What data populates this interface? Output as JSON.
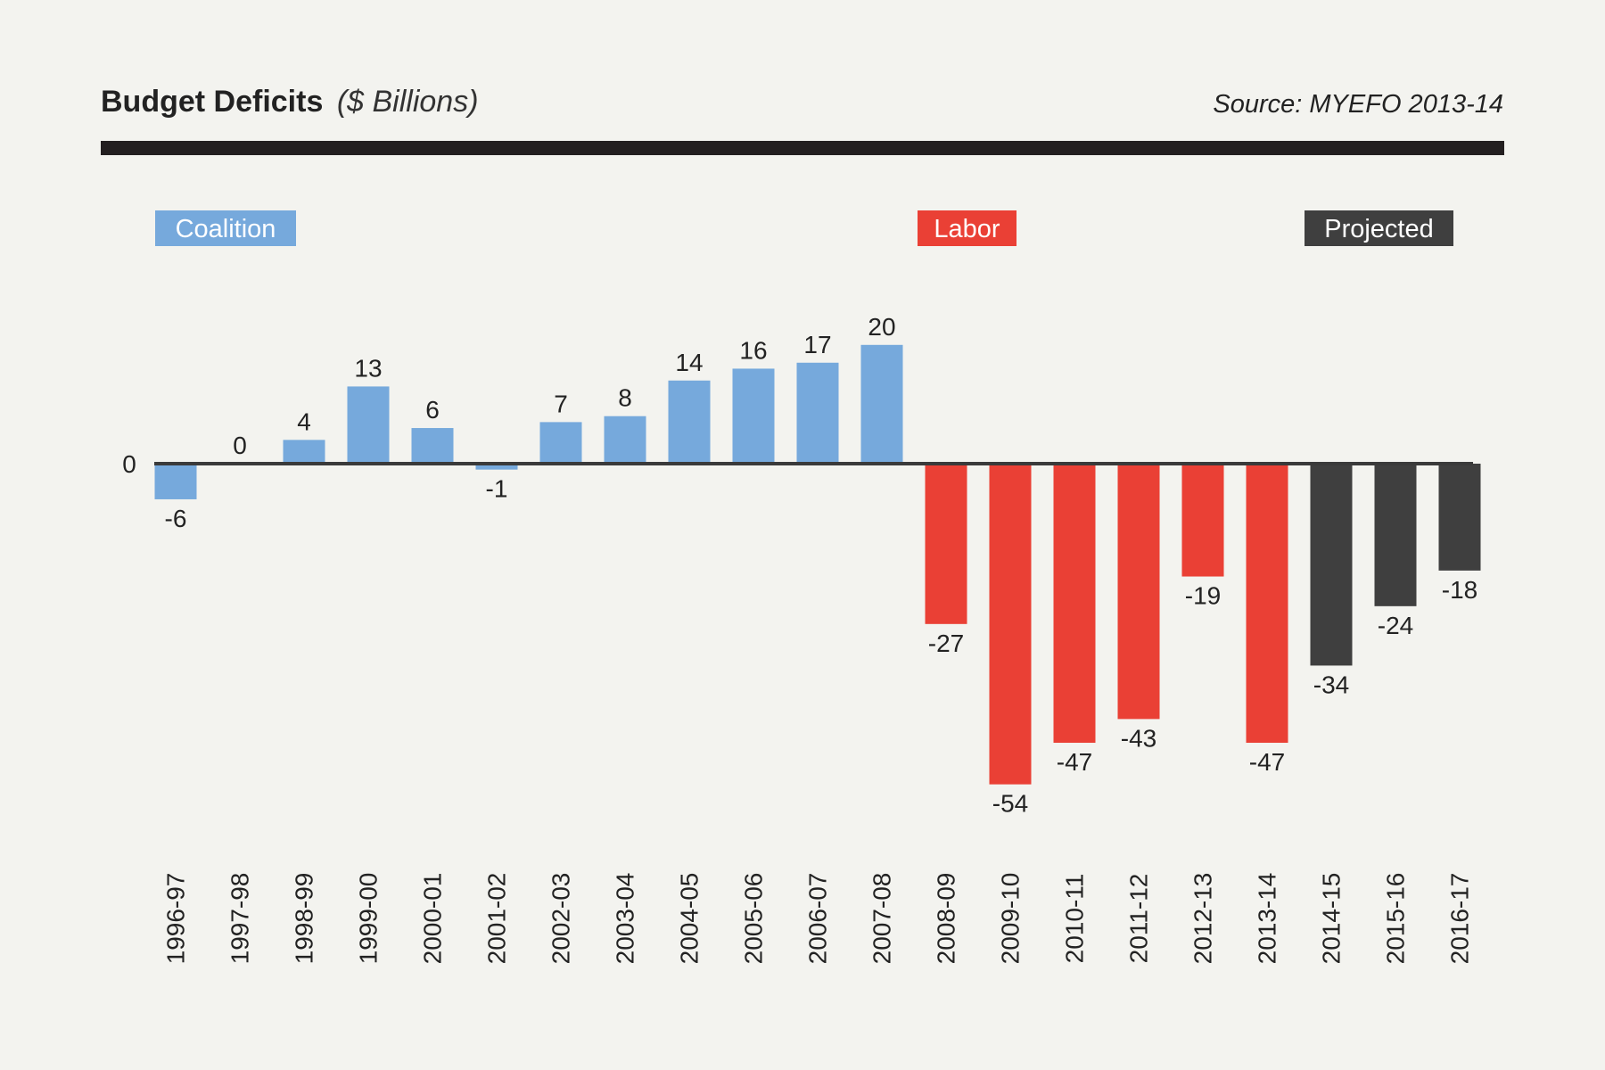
{
  "header": {
    "title": "Budget Deficits",
    "subtitle": "($ Billions)",
    "source": "Source: MYEFO 2013-14"
  },
  "colors": {
    "coalition": "#76a9dc",
    "labor": "#ea4035",
    "projected": "#3f3f3f",
    "legend_text": "#ffffff",
    "baseline": "#3a3a3a",
    "text": "#222222",
    "background": "#f3f3ef"
  },
  "chart_data": {
    "type": "bar",
    "title": "Budget Deficits",
    "subtitle": "($ Billions)",
    "source": "Source: MYEFO 2013-14",
    "zero_label": "0",
    "ylim": [
      -54,
      20
    ],
    "grid": false,
    "legend_position": "top",
    "legend": [
      {
        "label": "Coalition",
        "group": "coalition"
      },
      {
        "label": "Labor",
        "group": "labor"
      },
      {
        "label": "Projected",
        "group": "projected"
      }
    ],
    "categories": [
      "1996-97",
      "1997-98",
      "1998-99",
      "1999-00",
      "2000-01",
      "2001-02",
      "2002-03",
      "2003-04",
      "2004-05",
      "2005-06",
      "2006-07",
      "2007-08",
      "2008-09",
      "2009-10",
      "2010-11",
      "2011-12",
      "2012-13",
      "2013-14",
      "2014-15",
      "2015-16",
      "2016-17"
    ],
    "values": [
      -6,
      0,
      4,
      13,
      6,
      -1,
      7,
      8,
      14,
      16,
      17,
      20,
      -27,
      -54,
      -47,
      -43,
      -19,
      -47,
      -34,
      -24,
      -18
    ],
    "value_labels": [
      "-6",
      "0",
      "4",
      "13",
      "6",
      "-1",
      "7",
      "8",
      "14",
      "16",
      "17",
      "20",
      "-27",
      "-54",
      "-47",
      "-43",
      "-19",
      "-47",
      "-34",
      "-24",
      "-18"
    ],
    "groups": [
      "coalition",
      "coalition",
      "coalition",
      "coalition",
      "coalition",
      "coalition",
      "coalition",
      "coalition",
      "coalition",
      "coalition",
      "coalition",
      "coalition",
      "labor",
      "labor",
      "labor",
      "labor",
      "labor",
      "labor",
      "projected",
      "projected",
      "projected"
    ]
  }
}
